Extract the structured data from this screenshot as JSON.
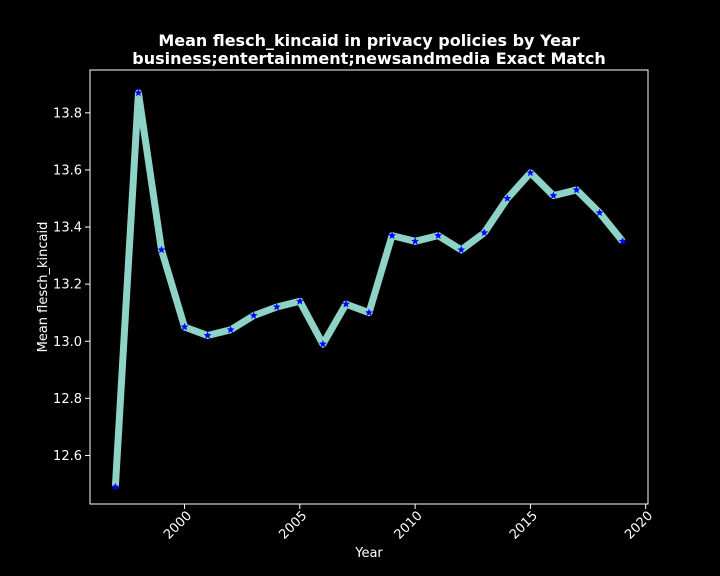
{
  "chart_data": {
    "type": "line",
    "title": "Mean flesch_kincaid in privacy policies by Year",
    "subtitle": "business;entertainment;newsandmedia Exact Match",
    "xlabel": "Year",
    "ylabel": "Mean flesch_kincaid",
    "xlim": [
      1995.9,
      2020.1
    ],
    "ylim": [
      12.43,
      13.95
    ],
    "xticks": [
      2000,
      2005,
      2010,
      2015,
      2020
    ],
    "xtick_labels": [
      "2000",
      "2005",
      "2010",
      "2015",
      "2020"
    ],
    "yticks": [
      12.6,
      12.8,
      13.0,
      13.2,
      13.4,
      13.6,
      13.8
    ],
    "ytick_labels": [
      "12.6",
      "12.8",
      "13.0",
      "13.2",
      "13.4",
      "13.6",
      "13.8"
    ],
    "grid": false,
    "series": [
      {
        "line_color": "#8dd3c7",
        "marker_color": "#0000ff",
        "marker": "star",
        "points": [
          {
            "x": 1997,
            "y": 12.49
          },
          {
            "x": 1998,
            "y": 13.87
          },
          {
            "x": 1999,
            "y": 13.32
          },
          {
            "x": 2000,
            "y": 13.05
          },
          {
            "x": 2001,
            "y": 13.02
          },
          {
            "x": 2002,
            "y": 13.04
          },
          {
            "x": 2003,
            "y": 13.09
          },
          {
            "x": 2004,
            "y": 13.12
          },
          {
            "x": 2005,
            "y": 13.14
          },
          {
            "x": 2006,
            "y": 12.99
          },
          {
            "x": 2007,
            "y": 13.13
          },
          {
            "x": 2008,
            "y": 13.1
          },
          {
            "x": 2009,
            "y": 13.37
          },
          {
            "x": 2010,
            "y": 13.35
          },
          {
            "x": 2011,
            "y": 13.37
          },
          {
            "x": 2012,
            "y": 13.32
          },
          {
            "x": 2013,
            "y": 13.38
          },
          {
            "x": 2014,
            "y": 13.5
          },
          {
            "x": 2015,
            "y": 13.59
          },
          {
            "x": 2016,
            "y": 13.51
          },
          {
            "x": 2017,
            "y": 13.53
          },
          {
            "x": 2018,
            "y": 13.45
          },
          {
            "x": 2019,
            "y": 13.35
          }
        ]
      }
    ]
  },
  "colors": {
    "background": "#000000",
    "text": "#ffffff",
    "axes": "#ffffff"
  }
}
